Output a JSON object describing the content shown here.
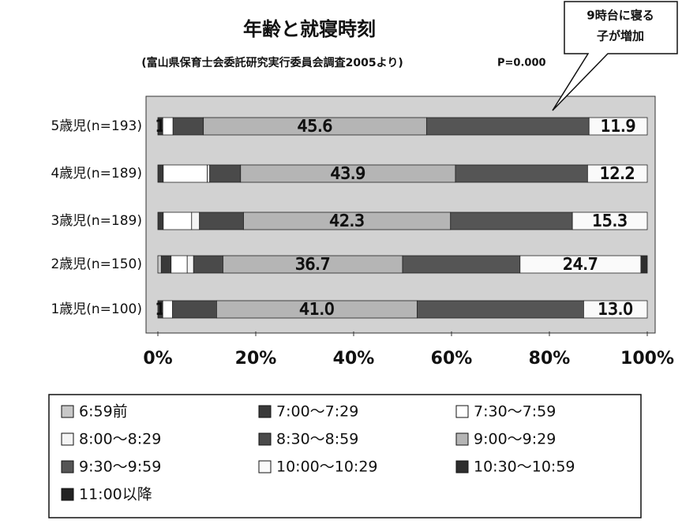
{
  "chart_data": {
    "type": "stacked_bar_horizontal",
    "title": "年齢と就寝時刻",
    "subtitle": "(富山県保育士会委託研究実行委員会調査2005より)",
    "annotations": [
      "P=0.000",
      "9時台に寝る",
      "子が増加"
    ],
    "categories": [
      "5歳児(n=193)",
      "4歳児(n=189)",
      "3歳児(n=189)",
      "2歳児(n=150)",
      "1歳児(n=100)"
    ],
    "xlim": [
      0,
      100
    ],
    "xticks": [
      {
        "value": 0,
        "label": "0%"
      },
      {
        "value": 20,
        "label": "20%"
      },
      {
        "value": 40,
        "label": "40%"
      },
      {
        "value": 60,
        "label": "60%"
      },
      {
        "value": 80,
        "label": "80%"
      },
      {
        "value": 100,
        "label": "100%"
      }
    ],
    "series": [
      {
        "name": "6:59前",
        "color": "#c8c8c8",
        "values": [
          0,
          0,
          0,
          0.7,
          0
        ]
      },
      {
        "name": "7:00～7:29",
        "color": "#3a3a3a",
        "values": [
          1,
          1.1,
          1.1,
          2.0,
          1
        ],
        "value_labels": [
          "1",
          null,
          null,
          null,
          "1"
        ]
      },
      {
        "name": "7:30～7:59",
        "color": "#ffffff",
        "values": [
          2.1,
          9.0,
          5.8,
          3.3,
          2.0
        ]
      },
      {
        "name": "8:00～8:29",
        "color": "#f4f4f4",
        "values": [
          0,
          0.5,
          1.6,
          1.3,
          0
        ]
      },
      {
        "name": "8:30～8:59",
        "color": "#4a4a4a",
        "values": [
          6.2,
          6.3,
          9.0,
          6.0,
          9.0
        ]
      },
      {
        "name": "9:00～9:29",
        "color": "#b5b5b5",
        "values": [
          45.6,
          43.9,
          42.3,
          36.7,
          41.0
        ],
        "value_labels": [
          "45.6",
          "43.9",
          "42.3",
          "36.7",
          "41.0"
        ]
      },
      {
        "name": "9:30～9:59",
        "color": "#555555",
        "values": [
          33.2,
          27.0,
          24.9,
          24.0,
          34.0
        ]
      },
      {
        "name": "10:00～10:29",
        "color": "#fafafa",
        "values": [
          11.9,
          12.2,
          15.3,
          24.7,
          13.0
        ],
        "value_labels": [
          "11.9",
          "12.2",
          "15.3",
          "24.7",
          "13.0"
        ]
      },
      {
        "name": "10:30～10:59",
        "color": "#2e2e2e",
        "values": [
          0,
          0,
          0,
          1.3,
          0
        ]
      },
      {
        "name": "11:00以降",
        "color": "#222222",
        "values": [
          0,
          0,
          0,
          0,
          0
        ]
      }
    ]
  }
}
